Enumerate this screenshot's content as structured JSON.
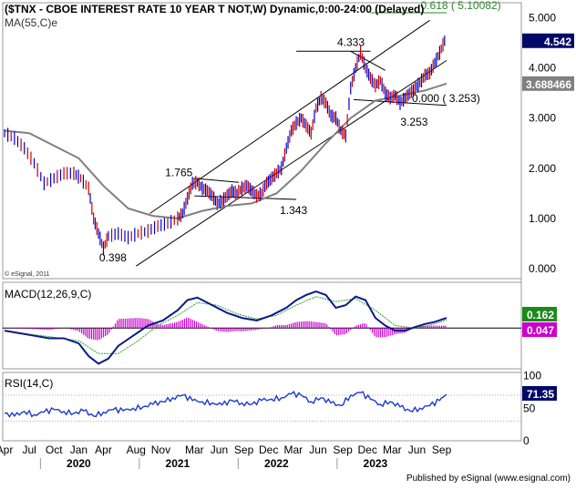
{
  "title": "($TNX - CBOE INTEREST RATE 10 YEAR T NOT,W) Dynamic,0:00-24:00 (Delayed)",
  "ma_label": "MA(55,C)e",
  "copyright": "© eSignal, 2011",
  "footer": "Published by eSignal (www.esignal.com)",
  "colors": {
    "price": "#0000cc",
    "ma": "#808080",
    "macd": "#0a1a8a",
    "signal": "#2aa02a",
    "hist": "#cc00cc",
    "rsi": "#1a3acc",
    "fib": "#2a8a2a",
    "badge_blue": "#000a66",
    "badge_green": "#1a8a1a",
    "badge_magenta": "#cc00cc",
    "badge_gray": "#808080"
  },
  "chart_data": [
    {
      "type": "line",
      "panel": "price",
      "x_range": [
        2019.25,
        2023.72
      ],
      "ylim": [
        -0.2,
        5.3
      ],
      "yticks": [
        "5.000",
        "4.000",
        "3.000",
        "2.000",
        "1.000",
        "0.000"
      ],
      "ytick_values": [
        5,
        4,
        3,
        2,
        1,
        0
      ],
      "series": [
        {
          "name": "$TNX",
          "x": [
            2019.25,
            2019.35,
            2019.45,
            2019.55,
            2019.65,
            2019.75,
            2019.85,
            2019.95,
            2020.02,
            2020.1,
            2020.15,
            2020.2,
            2020.25,
            2020.3,
            2020.4,
            2020.5,
            2020.6,
            2020.7,
            2020.8,
            2020.9,
            2021.0,
            2021.05,
            2021.1,
            2021.15,
            2021.2,
            2021.25,
            2021.3,
            2021.35,
            2021.4,
            2021.45,
            2021.5,
            2021.55,
            2021.6,
            2021.65,
            2021.7,
            2021.75,
            2021.8,
            2021.85,
            2021.9,
            2021.95,
            2022.0,
            2022.05,
            2022.1,
            2022.15,
            2022.2,
            2022.25,
            2022.3,
            2022.35,
            2022.4,
            2022.45,
            2022.5,
            2022.55,
            2022.6,
            2022.65,
            2022.7,
            2022.75,
            2022.8,
            2022.85,
            2022.9,
            2022.95,
            2023.0,
            2023.05,
            2023.1,
            2023.15,
            2023.2,
            2023.25,
            2023.3,
            2023.35,
            2023.4,
            2023.45,
            2023.5,
            2023.55,
            2023.6,
            2023.65,
            2023.7
          ],
          "y": [
            2.7,
            2.6,
            2.4,
            2.1,
            1.7,
            1.8,
            1.9,
            1.9,
            1.8,
            1.6,
            1.0,
            0.7,
            0.4,
            0.65,
            0.7,
            0.62,
            0.7,
            0.75,
            0.85,
            0.9,
            1.0,
            1.1,
            1.4,
            1.7,
            1.72,
            1.6,
            1.55,
            1.45,
            1.3,
            1.35,
            1.45,
            1.55,
            1.5,
            1.6,
            1.65,
            1.55,
            1.45,
            1.5,
            1.7,
            1.8,
            1.9,
            2.0,
            2.4,
            2.75,
            2.9,
            3.0,
            2.85,
            2.7,
            3.2,
            3.4,
            3.3,
            3.05,
            3.0,
            2.75,
            2.65,
            3.6,
            4.0,
            4.3,
            4.0,
            3.8,
            3.65,
            3.75,
            3.5,
            3.4,
            3.45,
            3.3,
            3.4,
            3.5,
            3.6,
            3.7,
            3.85,
            3.9,
            4.1,
            4.3,
            4.542
          ]
        },
        {
          "name": "MA(55,C)e",
          "x": [
            2019.25,
            2019.5,
            2019.75,
            2020.0,
            2020.25,
            2020.5,
            2020.75,
            2021.0,
            2021.25,
            2021.5,
            2021.75,
            2022.0,
            2022.25,
            2022.5,
            2022.75,
            2023.0,
            2023.25,
            2023.5,
            2023.72
          ],
          "y": [
            2.75,
            2.7,
            2.45,
            2.2,
            1.65,
            1.2,
            1.05,
            1.0,
            1.15,
            1.25,
            1.3,
            1.5,
            1.95,
            2.5,
            3.0,
            3.35,
            3.45,
            3.55,
            3.688466
          ]
        }
      ],
      "annotations": [
        {
          "text": "0.398",
          "x": 2020.3,
          "y": 0.398
        },
        {
          "text": "1.765",
          "x": 2021.17,
          "y": 1.765
        },
        {
          "text": "1.343",
          "x": 2021.85,
          "y": 1.343
        },
        {
          "text": "4.333",
          "x": 2022.78,
          "y": 4.333
        },
        {
          "text": "3.253",
          "x": 2023.3,
          "y": 3.253
        },
        {
          "text": "0.618 ( 5.10082)",
          "x": 2023.55,
          "y": 5.10082
        },
        {
          "text": "0.000 ( 3.253)",
          "x": 2023.37,
          "y": 3.253
        }
      ],
      "badges": [
        {
          "text": "4.542",
          "value": 4.542
        },
        {
          "text": "3.688466",
          "value": 3.688466
        }
      ]
    },
    {
      "type": "line",
      "panel": "macd",
      "title": "MACD(12,26,9,C)",
      "ylim": [
        -0.8,
        0.9
      ],
      "series": [
        {
          "name": "macd",
          "x": [
            2019.25,
            2019.4,
            2019.55,
            2019.7,
            2019.85,
            2020.0,
            2020.1,
            2020.2,
            2020.3,
            2020.4,
            2020.55,
            2020.7,
            2020.85,
            2021.0,
            2021.1,
            2021.2,
            2021.35,
            2021.5,
            2021.65,
            2021.8,
            2021.95,
            2022.1,
            2022.2,
            2022.3,
            2022.4,
            2022.5,
            2022.6,
            2022.7,
            2022.8,
            2022.9,
            2023.0,
            2023.1,
            2023.2,
            2023.3,
            2023.4,
            2023.5,
            2023.6,
            2023.72
          ],
          "y": [
            -0.05,
            -0.1,
            -0.15,
            -0.2,
            -0.2,
            -0.3,
            -0.55,
            -0.7,
            -0.6,
            -0.35,
            -0.15,
            0.05,
            0.15,
            0.35,
            0.55,
            0.6,
            0.45,
            0.3,
            0.2,
            0.15,
            0.25,
            0.4,
            0.55,
            0.65,
            0.72,
            0.65,
            0.4,
            0.45,
            0.62,
            0.55,
            0.2,
            0.05,
            -0.05,
            -0.05,
            0.02,
            0.08,
            0.12,
            0.2
          ]
        },
        {
          "name": "signal",
          "x": [
            2019.25,
            2019.5,
            2019.75,
            2020.0,
            2020.2,
            2020.4,
            2020.6,
            2020.8,
            2021.0,
            2021.2,
            2021.4,
            2021.6,
            2021.8,
            2022.0,
            2022.2,
            2022.4,
            2022.6,
            2022.8,
            2023.0,
            2023.2,
            2023.4,
            2023.6,
            2023.72
          ],
          "y": [
            -0.05,
            -0.12,
            -0.18,
            -0.25,
            -0.5,
            -0.5,
            -0.25,
            0.05,
            0.25,
            0.5,
            0.45,
            0.28,
            0.18,
            0.25,
            0.45,
            0.62,
            0.52,
            0.58,
            0.35,
            0.05,
            0.0,
            0.08,
            0.16
          ]
        }
      ],
      "badges": [
        {
          "text": "0.162",
          "value": 0.162
        },
        {
          "text": "0.047",
          "value": 0.047
        }
      ]
    },
    {
      "type": "line",
      "panel": "rsi",
      "title": "RSI(14,C)",
      "ylim": [
        0,
        105
      ],
      "yticks": [
        "100",
        "50",
        "0"
      ],
      "ytick_values": [
        100,
        50,
        0
      ],
      "series": [
        {
          "name": "RSI",
          "x": [
            2019.25,
            2019.35,
            2019.45,
            2019.55,
            2019.65,
            2019.75,
            2019.85,
            2019.95,
            2020.05,
            2020.15,
            2020.25,
            2020.35,
            2020.45,
            2020.55,
            2020.65,
            2020.75,
            2020.85,
            2020.95,
            2021.05,
            2021.15,
            2021.25,
            2021.35,
            2021.45,
            2021.55,
            2021.65,
            2021.75,
            2021.85,
            2021.95,
            2022.05,
            2022.15,
            2022.25,
            2022.35,
            2022.45,
            2022.55,
            2022.65,
            2022.75,
            2022.85,
            2022.95,
            2023.05,
            2023.15,
            2023.25,
            2023.35,
            2023.45,
            2023.55,
            2023.65,
            2023.72
          ],
          "y": [
            42,
            38,
            45,
            40,
            44,
            48,
            45,
            42,
            46,
            38,
            44,
            48,
            46,
            50,
            52,
            56,
            60,
            66,
            70,
            62,
            60,
            58,
            55,
            62,
            58,
            56,
            62,
            64,
            66,
            72,
            70,
            60,
            66,
            58,
            54,
            70,
            74,
            64,
            56,
            60,
            52,
            46,
            50,
            54,
            62,
            71.35
          ]
        }
      ],
      "badges": [
        {
          "text": "71.35",
          "value": 71.35
        }
      ]
    }
  ],
  "xaxis": {
    "months": [
      {
        "label": "Apr",
        "x": 2019.25
      },
      {
        "label": "Jul",
        "x": 2019.5
      },
      {
        "label": "Oct",
        "x": 2019.75
      },
      {
        "label": "Jan",
        "x": 2020.0
      },
      {
        "label": "Apr",
        "x": 2020.25
      },
      {
        "label": "Aug",
        "x": 2020.58
      },
      {
        "label": "Nov",
        "x": 2020.83
      },
      {
        "label": "Mar",
        "x": 2021.17
      },
      {
        "label": "Jun",
        "x": 2021.42
      },
      {
        "label": "Sep",
        "x": 2021.67
      },
      {
        "label": "Dec",
        "x": 2021.92
      },
      {
        "label": "Mar",
        "x": 2022.17
      },
      {
        "label": "Jun",
        "x": 2022.42
      },
      {
        "label": "Sep",
        "x": 2022.67
      },
      {
        "label": "Dec",
        "x": 2022.92
      },
      {
        "label": "Mar",
        "x": 2023.17
      },
      {
        "label": "Jun",
        "x": 2023.42
      },
      {
        "label": "Sep",
        "x": 2023.67
      }
    ],
    "years": [
      {
        "label": "2020",
        "x": 2020.0
      },
      {
        "label": "2021",
        "x": 2021.0
      },
      {
        "label": "2022",
        "x": 2022.0
      },
      {
        "label": "2023",
        "x": 2023.0
      }
    ]
  }
}
